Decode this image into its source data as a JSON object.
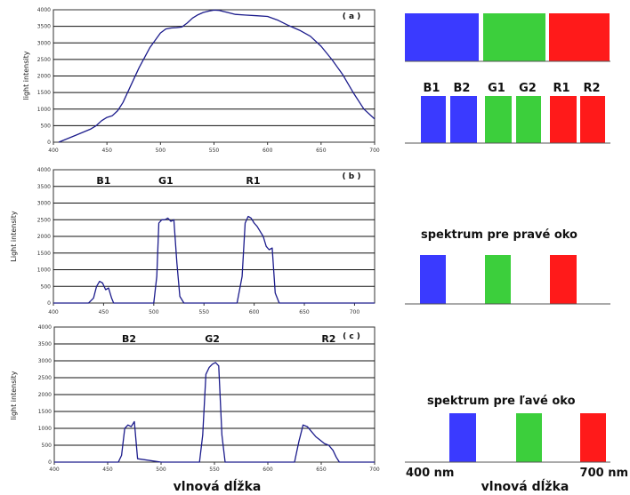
{
  "chart_data": [
    {
      "type": "line",
      "panel_label": "( a )",
      "ylabel": "light intensity",
      "xlim": [
        400,
        700
      ],
      "ylim": [
        0,
        4000
      ],
      "xticks": [
        400,
        450,
        500,
        550,
        600,
        650,
        700
      ],
      "yticks": [
        0,
        500,
        1000,
        1500,
        2000,
        2500,
        3000,
        3500,
        4000
      ],
      "peak_labels": [],
      "series": [
        {
          "x": [
            405,
            420,
            435,
            440,
            445,
            450,
            455,
            460,
            465,
            470,
            480,
            490,
            500,
            505,
            510,
            515,
            520,
            525,
            530,
            535,
            540,
            545,
            550,
            555,
            560,
            570,
            580,
            590,
            600,
            610,
            620,
            630,
            640,
            650,
            660,
            670,
            680,
            690,
            700
          ],
          "y": [
            0,
            200,
            400,
            500,
            650,
            750,
            800,
            950,
            1200,
            1550,
            2250,
            2850,
            3300,
            3420,
            3450,
            3460,
            3480,
            3600,
            3750,
            3850,
            3920,
            3960,
            3990,
            3980,
            3940,
            3860,
            3840,
            3820,
            3800,
            3680,
            3520,
            3380,
            3200,
            2900,
            2500,
            2050,
            1500,
            1000,
            700
          ]
        }
      ]
    },
    {
      "type": "line",
      "panel_label": "( b )",
      "ylabel": "Light intensity",
      "xlim": [
        400,
        720
      ],
      "ylim": [
        0,
        4000
      ],
      "xticks": [
        400,
        450,
        500,
        550,
        600,
        650,
        700
      ],
      "yticks": [
        0,
        500,
        1000,
        1500,
        2000,
        2500,
        3000,
        3500,
        4000
      ],
      "peak_labels": [
        {
          "text": "B1",
          "x": 450
        },
        {
          "text": "G1",
          "x": 512
        },
        {
          "text": "R1",
          "x": 599
        }
      ],
      "series": [
        {
          "x": [
            400,
            435,
            440,
            443,
            446,
            449,
            452,
            455,
            458,
            460,
            490,
            500,
            503,
            505,
            508,
            511,
            514,
            517,
            520,
            523,
            526,
            530,
            570,
            583,
            588,
            591,
            594,
            597,
            600,
            603,
            606,
            609,
            612,
            615,
            618,
            621,
            625,
            720
          ],
          "y": [
            0,
            0,
            150,
            500,
            650,
            600,
            400,
            450,
            150,
            0,
            0,
            0,
            800,
            2400,
            2500,
            2500,
            2550,
            2450,
            2500,
            1200,
            200,
            0,
            0,
            0,
            800,
            2400,
            2600,
            2550,
            2400,
            2300,
            2150,
            2000,
            1700,
            1600,
            1650,
            300,
            0,
            0
          ]
        }
      ]
    },
    {
      "type": "line",
      "panel_label": "( c )",
      "ylabel": "light intensity",
      "xlim": [
        400,
        700
      ],
      "ylim": [
        0,
        4000
      ],
      "xticks": [
        400,
        450,
        500,
        550,
        600,
        650,
        700
      ],
      "yticks": [
        0,
        500,
        1000,
        1500,
        2000,
        2500,
        3000,
        3500,
        4000
      ],
      "peak_labels": [
        {
          "text": "B2",
          "x": 470
        },
        {
          "text": "G2",
          "x": 548
        },
        {
          "text": "R2",
          "x": 657
        }
      ],
      "series": [
        {
          "x": [
            400,
            460,
            463,
            466,
            469,
            472,
            475,
            478,
            500,
            536,
            539,
            542,
            545,
            548,
            551,
            554,
            557,
            560,
            600,
            625,
            629,
            633,
            637,
            641,
            645,
            649,
            653,
            657,
            661,
            664,
            667,
            700
          ],
          "y": [
            0,
            0,
            200,
            1000,
            1100,
            1050,
            1200,
            100,
            0,
            0,
            800,
            2600,
            2800,
            2900,
            2950,
            2850,
            800,
            0,
            0,
            0,
            600,
            1100,
            1050,
            900,
            750,
            650,
            550,
            500,
            350,
            150,
            0,
            0
          ]
        }
      ]
    }
  ],
  "diagram": {
    "full_spectrum_colors": [
      "#3a3aff",
      "#3ccf3c",
      "#ff1a1a"
    ],
    "split_band_labels": [
      "B1",
      "B2",
      "G1",
      "G2",
      "R1",
      "R2"
    ],
    "split_band_colors": [
      "#3a3aff",
      "#3a3aff",
      "#3ccf3c",
      "#3ccf3c",
      "#ff1a1a",
      "#ff1a1a"
    ],
    "right_eye_title": "spektrum pre pravé oko",
    "left_eye_title": "spektrum pre ľavé oko",
    "range_start": "400 nm",
    "range_end": "700 nm"
  },
  "axis_titles": {
    "left": "vlnová dĺžka",
    "right": "vlnová dĺžka"
  }
}
